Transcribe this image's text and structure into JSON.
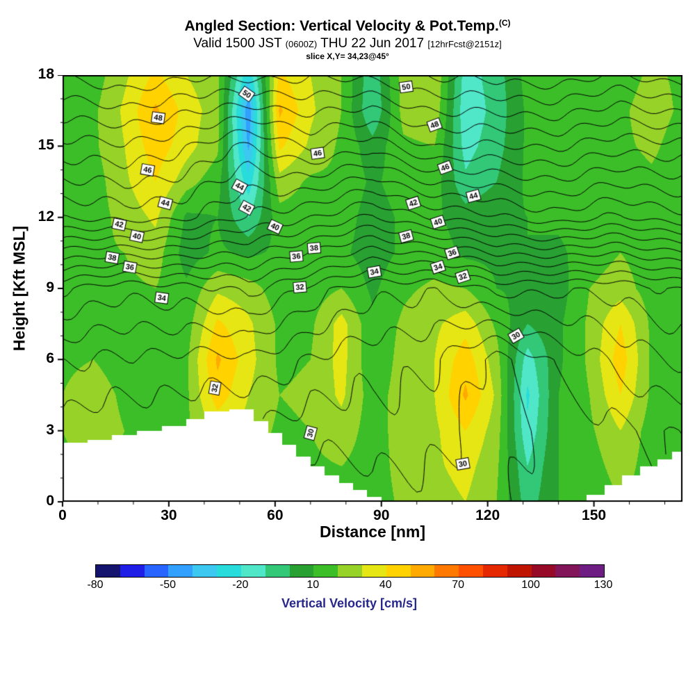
{
  "header": {
    "title": "Angled Section: Vertical Velocity & Pot.Temp.",
    "title_units": "(C)",
    "valid_main_1": "Valid 1500 JST",
    "valid_small_1": "(0600Z)",
    "valid_main_2": "THU 22 Jun 2017",
    "valid_small_2": "[12hrFcst@2151z]",
    "slice_line": "slice X,Y= 34,23@45°"
  },
  "axes": {
    "x_label": "Distance [nm]",
    "y_label": "Height [Kft MSL]",
    "x_ticks": [
      0,
      30,
      60,
      90,
      120,
      150
    ],
    "y_ticks": [
      0,
      3,
      6,
      9,
      12,
      15,
      18
    ],
    "x_minor_step": 10,
    "y_minor_step": 1,
    "x_range": [
      0,
      175
    ],
    "y_range": [
      0,
      18
    ]
  },
  "colorbar": {
    "title": "Vertical Velocity [cm/s]",
    "title_color": "#26268c",
    "tick_values": [
      -80,
      -50,
      -20,
      10,
      40,
      70,
      100,
      130
    ],
    "level_min": -80,
    "level_step": 10,
    "colors": [
      "#14146e",
      "#1e1ee6",
      "#2864ff",
      "#32a0ff",
      "#3cc8f0",
      "#28dcdc",
      "#50e6c8",
      "#32c878",
      "#28a032",
      "#3cbe28",
      "#96d228",
      "#e6e614",
      "#ffd200",
      "#ffaa00",
      "#ff7800",
      "#ff5000",
      "#e62800",
      "#be1400",
      "#960a28",
      "#82145a",
      "#6e1e82"
    ]
  },
  "chart_data": {
    "type": "heatmap",
    "title": "Angled Section: Vertical Velocity & Pot.Temp. (C)",
    "xlabel": "Distance [nm]",
    "ylabel": "Height [Kft MSL]",
    "xlim": [
      0,
      175
    ],
    "ylim": [
      0,
      18
    ],
    "fill_field": {
      "name": "vertical_velocity_cms",
      "x": [
        0,
        8.75,
        17.5,
        26.25,
        35,
        43.75,
        52.5,
        61.25,
        70,
        78.75,
        87.5,
        96.25,
        105,
        113.75,
        122.5,
        131.25,
        140,
        148.75,
        157.5,
        166.25,
        175
      ],
      "y_top_to_bottom": [
        18,
        16.5,
        15,
        13.5,
        12,
        10.5,
        9,
        7.5,
        6,
        4.5,
        3,
        1.5,
        0
      ],
      "values": [
        [
          15,
          15,
          28,
          42,
          30,
          22,
          -28,
          42,
          30,
          20,
          -8,
          25,
          30,
          -15,
          -5,
          14,
          15,
          15,
          15,
          22,
          18
        ],
        [
          15,
          18,
          32,
          52,
          36,
          24,
          -48,
          52,
          32,
          20,
          -10,
          24,
          28,
          -18,
          -6,
          12,
          15,
          15,
          18,
          25,
          18
        ],
        [
          15,
          18,
          30,
          46,
          34,
          22,
          -42,
          42,
          28,
          18,
          4,
          18,
          20,
          -14,
          -4,
          12,
          15,
          15,
          18,
          22,
          15
        ],
        [
          15,
          15,
          28,
          40,
          24,
          14,
          -26,
          26,
          18,
          18,
          8,
          15,
          15,
          -8,
          0,
          12,
          15,
          15,
          15,
          18,
          15
        ],
        [
          15,
          15,
          24,
          32,
          8,
          10,
          -10,
          16,
          15,
          15,
          5,
          12,
          12,
          5,
          8,
          10,
          12,
          15,
          18,
          15,
          15
        ],
        [
          15,
          18,
          20,
          25,
          5,
          12,
          8,
          12,
          15,
          12,
          5,
          12,
          15,
          8,
          8,
          10,
          8,
          15,
          20,
          15,
          15
        ],
        [
          15,
          18,
          18,
          20,
          12,
          28,
          24,
          15,
          15,
          20,
          8,
          18,
          22,
          20,
          10,
          8,
          5,
          20,
          25,
          15,
          15
        ],
        [
          15,
          18,
          15,
          15,
          15,
          42,
          32,
          18,
          18,
          34,
          12,
          22,
          28,
          36,
          18,
          0,
          8,
          22,
          40,
          18,
          15
        ],
        [
          18,
          20,
          15,
          15,
          18,
          52,
          34,
          18,
          20,
          34,
          12,
          24,
          30,
          46,
          24,
          -15,
          8,
          22,
          46,
          18,
          15
        ],
        [
          20,
          25,
          18,
          15,
          18,
          46,
          30,
          20,
          22,
          32,
          15,
          25,
          30,
          52,
          28,
          -22,
          10,
          20,
          40,
          18,
          15
        ],
        [
          20,
          25,
          20,
          18,
          18,
          32,
          26,
          18,
          20,
          26,
          15,
          25,
          28,
          40,
          25,
          -18,
          10,
          18,
          30,
          15,
          15
        ],
        [
          18,
          20,
          18,
          15,
          15,
          20,
          20,
          15,
          18,
          20,
          15,
          24,
          28,
          34,
          22,
          -10,
          10,
          15,
          25,
          15,
          15
        ],
        [
          15,
          18,
          15,
          15,
          15,
          18,
          18,
          12,
          15,
          18,
          15,
          22,
          25,
          30,
          20,
          -5,
          10,
          12,
          20,
          15,
          15
        ]
      ]
    },
    "contour_field": {
      "name": "potential_temperature_C",
      "x": [
        0,
        17.5,
        35,
        52.5,
        70,
        87.5,
        105,
        122.5,
        140,
        157.5,
        175
      ],
      "y_top_to_bottom": [
        18,
        15,
        12,
        9,
        6,
        3,
        0
      ],
      "values": [
        [
          50.0,
          51.0,
          50.0,
          50.5,
          50.0,
          50.5,
          51.0,
          51.5,
          51.5,
          51.0,
          51.5
        ],
        [
          46.5,
          47.0,
          46.0,
          45.0,
          46.0,
          45.5,
          47.0,
          47.0,
          47.0,
          46.5,
          46.5
        ],
        [
          43.0,
          43.5,
          43.0,
          42.0,
          41.0,
          40.0,
          41.0,
          42.0,
          42.5,
          42.0,
          42.5
        ],
        [
          36.0,
          35.5,
          35.5,
          36.5,
          34.5,
          33.5,
          33.0,
          34.5,
          34.0,
          34.5,
          35.0
        ],
        [
          33.0,
          33.0,
          32.5,
          33.0,
          31.8,
          31.5,
          31.0,
          29.8,
          31.2,
          32.5,
          33.0
        ],
        [
          31.5,
          31.4,
          31.0,
          31.0,
          30.2,
          30.8,
          30.2,
          29.6,
          30.4,
          31.0,
          31.0
        ],
        [
          30.8,
          30.8,
          30.6,
          30.5,
          29.0,
          29.5,
          29.5,
          29.8,
          30.4,
          30.5,
          30.5
        ]
      ],
      "interval": 1,
      "level_min": 30,
      "level_max": 52,
      "labeled_levels": [
        30,
        32,
        34,
        36,
        38,
        40,
        42,
        44,
        46,
        48,
        50
      ],
      "labels": [
        {
          "level": 48,
          "x": 27,
          "y": 16.2,
          "rot": 8
        },
        {
          "level": 50,
          "x": 52,
          "y": 17.2,
          "rot": 35
        },
        {
          "level": 50,
          "x": 97,
          "y": 17.5,
          "rot": -8
        },
        {
          "level": 46,
          "x": 24,
          "y": 14.0,
          "rot": 10
        },
        {
          "level": 46,
          "x": 72,
          "y": 14.7,
          "rot": -8
        },
        {
          "level": 48,
          "x": 105,
          "y": 15.9,
          "rot": -20
        },
        {
          "level": 46,
          "x": 108,
          "y": 14.1,
          "rot": -20
        },
        {
          "level": 44,
          "x": 29,
          "y": 12.6,
          "rot": 15
        },
        {
          "level": 44,
          "x": 50,
          "y": 13.3,
          "rot": 28
        },
        {
          "level": 44,
          "x": 116,
          "y": 12.9,
          "rot": -15
        },
        {
          "level": 42,
          "x": 16,
          "y": 11.7,
          "rot": 12
        },
        {
          "level": 42,
          "x": 52,
          "y": 12.4,
          "rot": 28
        },
        {
          "level": 42,
          "x": 99,
          "y": 12.6,
          "rot": -18
        },
        {
          "level": 40,
          "x": 21,
          "y": 11.2,
          "rot": 12
        },
        {
          "level": 40,
          "x": 60,
          "y": 11.6,
          "rot": 25
        },
        {
          "level": 40,
          "x": 106,
          "y": 11.8,
          "rot": -18
        },
        {
          "level": 38,
          "x": 14,
          "y": 10.3,
          "rot": 10
        },
        {
          "level": 38,
          "x": 71,
          "y": 10.7,
          "rot": -5
        },
        {
          "level": 38,
          "x": 97,
          "y": 11.2,
          "rot": -15
        },
        {
          "level": 36,
          "x": 19,
          "y": 9.9,
          "rot": 10
        },
        {
          "level": 36,
          "x": 66,
          "y": 10.35,
          "rot": -5
        },
        {
          "level": 36,
          "x": 110,
          "y": 10.5,
          "rot": -18
        },
        {
          "level": 34,
          "x": 28,
          "y": 8.6,
          "rot": 8
        },
        {
          "level": 34,
          "x": 88,
          "y": 9.7,
          "rot": -10
        },
        {
          "level": 34,
          "x": 106,
          "y": 9.9,
          "rot": -18
        },
        {
          "level": 32,
          "x": 43,
          "y": 4.8,
          "rot": -80
        },
        {
          "level": 32,
          "x": 67,
          "y": 9.05,
          "rot": -5
        },
        {
          "level": 32,
          "x": 113,
          "y": 9.5,
          "rot": -18
        },
        {
          "level": 30,
          "x": 70,
          "y": 2.9,
          "rot": -75
        },
        {
          "level": 30,
          "x": 113,
          "y": 1.6,
          "rot": -10
        },
        {
          "level": 30,
          "x": 128,
          "y": 7.0,
          "rot": -30
        }
      ]
    },
    "terrain_blocks": [
      [
        0,
        7,
        2.5
      ],
      [
        7,
        14,
        2.6
      ],
      [
        14,
        21,
        2.8
      ],
      [
        21,
        28,
        3.0
      ],
      [
        28,
        35,
        3.2
      ],
      [
        35,
        40,
        3.5
      ],
      [
        40,
        47,
        3.8
      ],
      [
        47,
        54,
        3.9
      ],
      [
        54,
        58,
        3.4
      ],
      [
        58,
        62,
        2.9
      ],
      [
        62,
        66,
        2.4
      ],
      [
        66,
        70,
        1.9
      ],
      [
        70,
        74,
        1.5
      ],
      [
        74,
        78,
        1.1
      ],
      [
        78,
        82,
        0.8
      ],
      [
        82,
        86,
        0.5
      ],
      [
        86,
        90,
        0.2
      ],
      [
        148,
        153,
        0.3
      ],
      [
        153,
        158,
        0.7
      ],
      [
        158,
        163,
        1.1
      ],
      [
        163,
        168,
        1.5
      ],
      [
        168,
        172,
        1.8
      ],
      [
        172,
        175,
        2.1
      ]
    ]
  }
}
